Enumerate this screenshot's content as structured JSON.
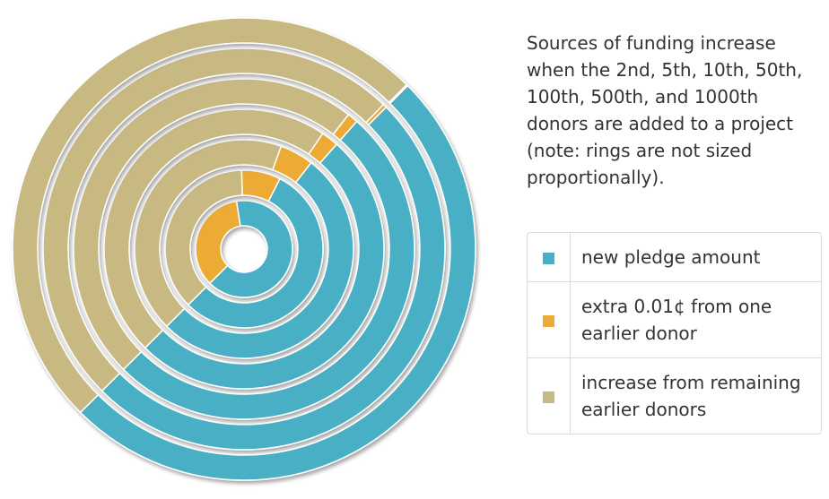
{
  "caption": "Sources of funding increase when the 2nd, 5th, 10th, 50th, 100th, 500th, and 1000th donors are added to a project (note: rings are not sized proportionally).",
  "legend": [
    {
      "label": "new pledge amount",
      "color": "#4aafc4"
    },
    {
      "label": "extra 0.01¢ from one earlier donor",
      "color": "#ecab35"
    },
    {
      "label": "increase from remaining earlier donors",
      "color": "#c8b882"
    }
  ],
  "chart_data": {
    "type": "pie",
    "rings": [
      {
        "ring": 1,
        "slices": [
          {
            "series": "new pledge amount",
            "share": 0.65
          },
          {
            "series": "extra 0.01¢ from one earlier donor",
            "share": 0.35
          },
          {
            "series": "increase from remaining earlier donors",
            "share": 0.0
          }
        ]
      },
      {
        "ring": 2,
        "slices": [
          {
            "series": "new pledge amount",
            "share": 0.55
          },
          {
            "series": "extra 0.01¢ from one earlier donor",
            "share": 0.08
          },
          {
            "series": "increase from remaining earlier donors",
            "share": 0.37
          }
        ]
      },
      {
        "ring": 3,
        "slices": [
          {
            "series": "new pledge amount",
            "share": 0.52
          },
          {
            "series": "extra 0.01¢ from one earlier donor",
            "share": 0.05
          },
          {
            "series": "increase from remaining earlier donors",
            "share": 0.43
          }
        ]
      },
      {
        "ring": 4,
        "slices": [
          {
            "series": "new pledge amount",
            "share": 0.51
          },
          {
            "series": "extra 0.01¢ from one earlier donor",
            "share": 0.02
          },
          {
            "series": "increase from remaining earlier donors",
            "share": 0.47
          }
        ]
      },
      {
        "ring": 5,
        "slices": [
          {
            "series": "new pledge amount",
            "share": 0.51
          },
          {
            "series": "extra 0.01¢ from one earlier donor",
            "share": 0.01
          },
          {
            "series": "increase from remaining earlier donors",
            "share": 0.48
          }
        ]
      },
      {
        "ring": 6,
        "slices": [
          {
            "series": "new pledge amount",
            "share": 0.5
          },
          {
            "series": "extra 0.01¢ from one earlier donor",
            "share": 0.003
          },
          {
            "series": "increase from remaining earlier donors",
            "share": 0.497
          }
        ]
      },
      {
        "ring": 7,
        "slices": [
          {
            "series": "new pledge amount",
            "share": 0.5
          },
          {
            "series": "extra 0.01¢ from one earlier donor",
            "share": 0.001
          },
          {
            "series": "increase from remaining earlier donors",
            "share": 0.499
          }
        ]
      }
    ]
  }
}
